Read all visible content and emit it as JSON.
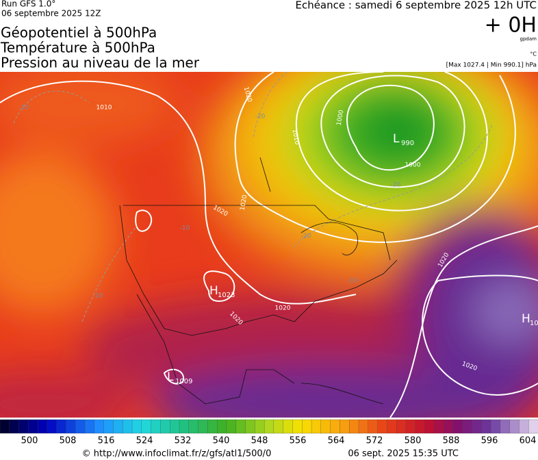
{
  "header": {
    "run": "Run GFS 1.0°",
    "run_date": "06 septembre 2025 12Z",
    "valid": "Echéance : samedi 6 septembre 2025 12h UTC",
    "lead": "+ 0H",
    "unit_gpdam": "gpdam",
    "unit_temp": "°C",
    "pressure_range": "[Max 1027.4 | Min 990.1] hPa",
    "titles": [
      "Géopotentiel à 500hPa",
      "Température à 500hPa",
      "Pression au niveau de la mer"
    ]
  },
  "map": {
    "centers": [
      {
        "letter": "L",
        "value": "990"
      },
      {
        "letter": "H",
        "value": "1023"
      },
      {
        "letter": "L",
        "value": "1009"
      },
      {
        "letter": "H",
        "value": "10"
      }
    ],
    "isobar_labels": [
      "1010",
      "1020",
      "1000",
      "1010",
      "1000",
      "1020",
      "1020",
      "1020",
      "1020",
      "1020",
      "1020"
    ],
    "isotherm_labels": [
      "-10",
      "-20",
      "-20",
      "-20",
      "-10",
      "-10",
      "-10"
    ]
  },
  "colorbar": {
    "ticks": [
      "500",
      "508",
      "516",
      "524",
      "532",
      "540",
      "548",
      "556",
      "564",
      "572",
      "580",
      "588",
      "596",
      "604"
    ]
  },
  "footer": {
    "source": "© http://www.infoclimat.fr/z/gfs/atl1/500/0",
    "generated": "06 sept. 2025 15:35 UTC"
  }
}
